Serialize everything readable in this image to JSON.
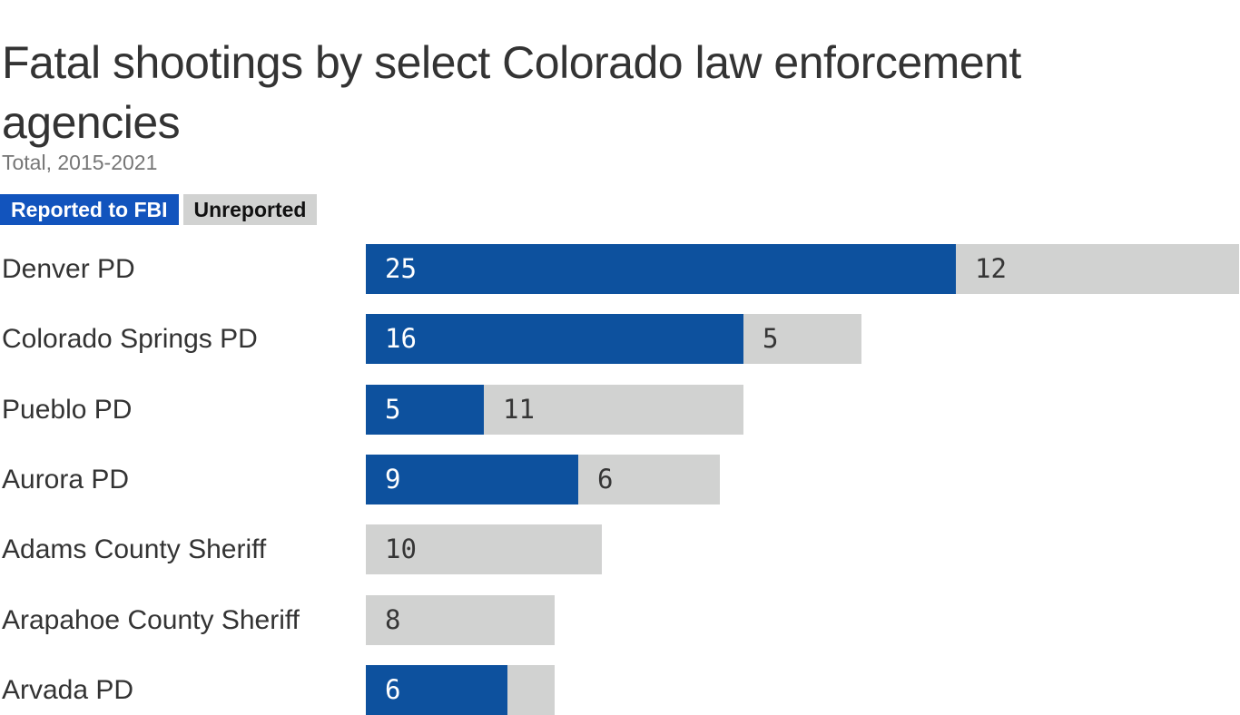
{
  "header": {
    "title": "Fatal shootings by select Colorado law enforcement agencies",
    "subtitle": "Total, 2015-2021"
  },
  "legend": {
    "items": [
      {
        "label": "Reported to FBI",
        "bg": "#1254bd",
        "fg": "#ffffff"
      },
      {
        "label": "Unreported",
        "bg": "#d1d2d1",
        "fg": "#111111"
      }
    ]
  },
  "chart_data": {
    "type": "bar",
    "orientation": "horizontal",
    "stacked": true,
    "title": "Fatal shootings by select Colorado law enforcement agencies",
    "subtitle": "Total, 2015-2021",
    "legend_position": "top-left",
    "grid": false,
    "axes_visible": false,
    "x_max_displayed": 37,
    "categories": [
      "Denver PD",
      "Colorado Springs PD",
      "Pueblo PD",
      "Aurora PD",
      "Adams County Sheriff",
      "Arapahoe County Sheriff",
      "Arvada PD"
    ],
    "series": [
      {
        "name": "Reported to FBI",
        "color": "#0d519e",
        "label_color": "#ffffff",
        "values": [
          25,
          16,
          5,
          9,
          0,
          0,
          6
        ]
      },
      {
        "name": "Unreported",
        "color": "#d1d2d1",
        "label_color": "#363636",
        "values": [
          12,
          5,
          11,
          6,
          10,
          8,
          2
        ]
      }
    ]
  }
}
